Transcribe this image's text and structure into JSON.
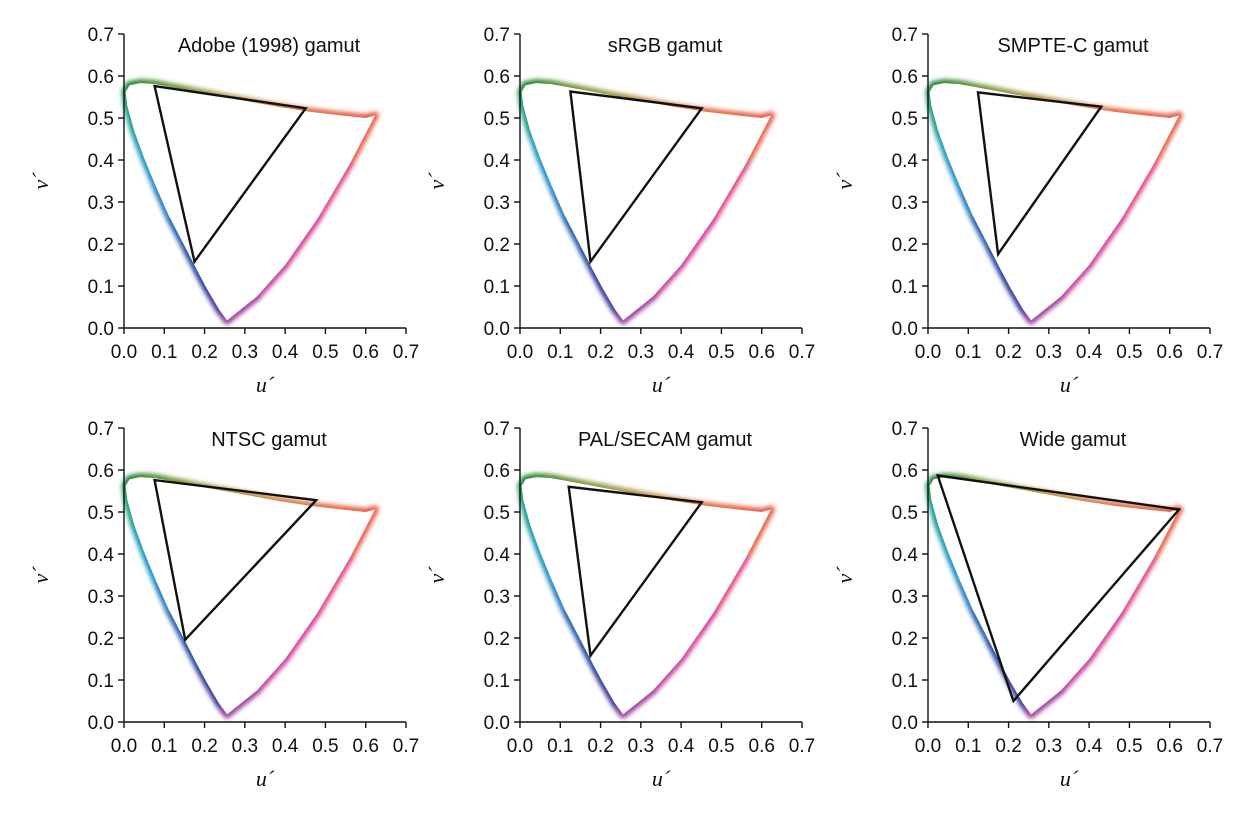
{
  "chart_data": [
    {
      "type": "scatter",
      "title": "Adobe (1998) gamut",
      "xlabel": "u´",
      "ylabel": "v´",
      "xlim": [
        0,
        0.7
      ],
      "ylim": [
        0,
        0.7
      ],
      "xticks": [
        "0.0",
        "0.1",
        "0.2",
        "0.3",
        "0.4",
        "0.5",
        "0.6",
        "0.7"
      ],
      "yticks": [
        "0.0",
        "0.1",
        "0.2",
        "0.3",
        "0.4",
        "0.5",
        "0.6",
        "0.7"
      ],
      "gamut_triangle": [
        [
          0.451,
          0.523
        ],
        [
          0.076,
          0.576
        ],
        [
          0.175,
          0.158
        ]
      ]
    },
    {
      "type": "scatter",
      "title": "sRGB gamut",
      "xlabel": "u´",
      "ylabel": "v´",
      "xlim": [
        0,
        0.7
      ],
      "ylim": [
        0,
        0.7
      ],
      "xticks": [
        "0.0",
        "0.1",
        "0.2",
        "0.3",
        "0.4",
        "0.5",
        "0.6",
        "0.7"
      ],
      "yticks": [
        "0.0",
        "0.1",
        "0.2",
        "0.3",
        "0.4",
        "0.5",
        "0.6",
        "0.7"
      ],
      "gamut_triangle": [
        [
          0.451,
          0.523
        ],
        [
          0.125,
          0.563
        ],
        [
          0.175,
          0.158
        ]
      ]
    },
    {
      "type": "scatter",
      "title": "SMPTE-C gamut",
      "xlabel": "u´",
      "ylabel": "v´",
      "xlim": [
        0,
        0.7
      ],
      "ylim": [
        0,
        0.7
      ],
      "xticks": [
        "0.0",
        "0.1",
        "0.2",
        "0.3",
        "0.4",
        "0.5",
        "0.6",
        "0.7"
      ],
      "yticks": [
        "0.0",
        "0.1",
        "0.2",
        "0.3",
        "0.4",
        "0.5",
        "0.6",
        "0.7"
      ],
      "gamut_triangle": [
        [
          0.43,
          0.527
        ],
        [
          0.124,
          0.561
        ],
        [
          0.174,
          0.176
        ]
      ]
    },
    {
      "type": "scatter",
      "title": "NTSC gamut",
      "xlabel": "u´",
      "ylabel": "v´",
      "xlim": [
        0,
        0.7
      ],
      "ylim": [
        0,
        0.7
      ],
      "xticks": [
        "0.0",
        "0.1",
        "0.2",
        "0.3",
        "0.4",
        "0.5",
        "0.6",
        "0.7"
      ],
      "yticks": [
        "0.0",
        "0.1",
        "0.2",
        "0.3",
        "0.4",
        "0.5",
        "0.6",
        "0.7"
      ],
      "gamut_triangle": [
        [
          0.477,
          0.528
        ],
        [
          0.076,
          0.576
        ],
        [
          0.152,
          0.196
        ]
      ]
    },
    {
      "type": "scatter",
      "title": "PAL/SECAM gamut",
      "xlabel": "u´",
      "ylabel": "v´",
      "xlim": [
        0,
        0.7
      ],
      "ylim": [
        0,
        0.7
      ],
      "xticks": [
        "0.0",
        "0.1",
        "0.2",
        "0.3",
        "0.4",
        "0.5",
        "0.6",
        "0.7"
      ],
      "yticks": [
        "0.0",
        "0.1",
        "0.2",
        "0.3",
        "0.4",
        "0.5",
        "0.6",
        "0.7"
      ],
      "gamut_triangle": [
        [
          0.451,
          0.523
        ],
        [
          0.121,
          0.56
        ],
        [
          0.175,
          0.158
        ]
      ]
    },
    {
      "type": "scatter",
      "title": "Wide gamut",
      "xlabel": "u´",
      "ylabel": "v´",
      "xlim": [
        0,
        0.7
      ],
      "ylim": [
        0,
        0.7
      ],
      "xticks": [
        "0.0",
        "0.1",
        "0.2",
        "0.3",
        "0.4",
        "0.5",
        "0.6",
        "0.7"
      ],
      "yticks": [
        "0.0",
        "0.1",
        "0.2",
        "0.3",
        "0.4",
        "0.5",
        "0.6",
        "0.7"
      ],
      "gamut_triangle": [
        [
          0.623,
          0.506
        ],
        [
          0.024,
          0.587
        ],
        [
          0.212,
          0.05
        ]
      ]
    }
  ]
}
